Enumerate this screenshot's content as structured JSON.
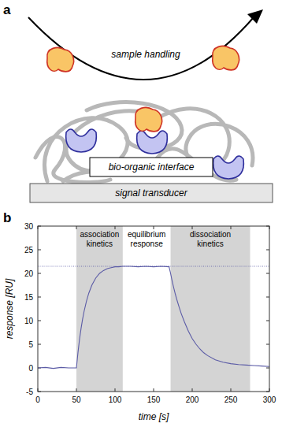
{
  "panel_labels": [
    "a",
    "b"
  ],
  "diagram": {
    "sample_handling": "sample handling",
    "interface": "bio-organic interface",
    "transducer": "signal transducer"
  },
  "chart_data": {
    "type": "line",
    "x": [
      0,
      10,
      20,
      30,
      40,
      50,
      52,
      54,
      56,
      58,
      60,
      63,
      66,
      70,
      75,
      80,
      85,
      90,
      95,
      100,
      105,
      110,
      120,
      130,
      140,
      150,
      160,
      170,
      172,
      174,
      176,
      178,
      180,
      183,
      186,
      190,
      195,
      200,
      205,
      210,
      215,
      220,
      230,
      240,
      250,
      260,
      270,
      280,
      290,
      300
    ],
    "values": [
      0,
      0.1,
      -0.1,
      0.1,
      0,
      0,
      3.2,
      6.0,
      8.3,
      10.3,
      12.0,
      14.1,
      15.8,
      17.5,
      19.0,
      20.0,
      20.6,
      21.0,
      21.2,
      21.4,
      21.4,
      21.5,
      21.5,
      21.4,
      21.5,
      21.4,
      21.5,
      21.4,
      20.0,
      18.4,
      17.0,
      15.7,
      14.5,
      12.9,
      11.4,
      9.7,
      7.8,
      6.2,
      5.0,
      4.0,
      3.2,
      2.6,
      1.7,
      1.2,
      0.9,
      0.7,
      0.6,
      0.5,
      0.4,
      0.3
    ],
    "color": "#5b5ba6",
    "x_label": "time [s]",
    "y_label": "response [RU]",
    "xlim": [
      0,
      300
    ],
    "xticks": [
      0,
      50,
      100,
      150,
      200,
      250,
      300
    ],
    "ylim": [
      -5,
      30
    ],
    "yticks": [
      -5,
      0,
      5,
      10,
      15,
      20,
      25,
      30
    ],
    "reference_line": 21.5,
    "regions": [
      {
        "label": "association kinetics",
        "start": 50,
        "end": 110
      },
      {
        "label": "dissociation kinetics",
        "start": 172,
        "end": 275
      }
    ],
    "annotations": [
      {
        "text": "equilibrium response",
        "x": 141
      }
    ]
  }
}
